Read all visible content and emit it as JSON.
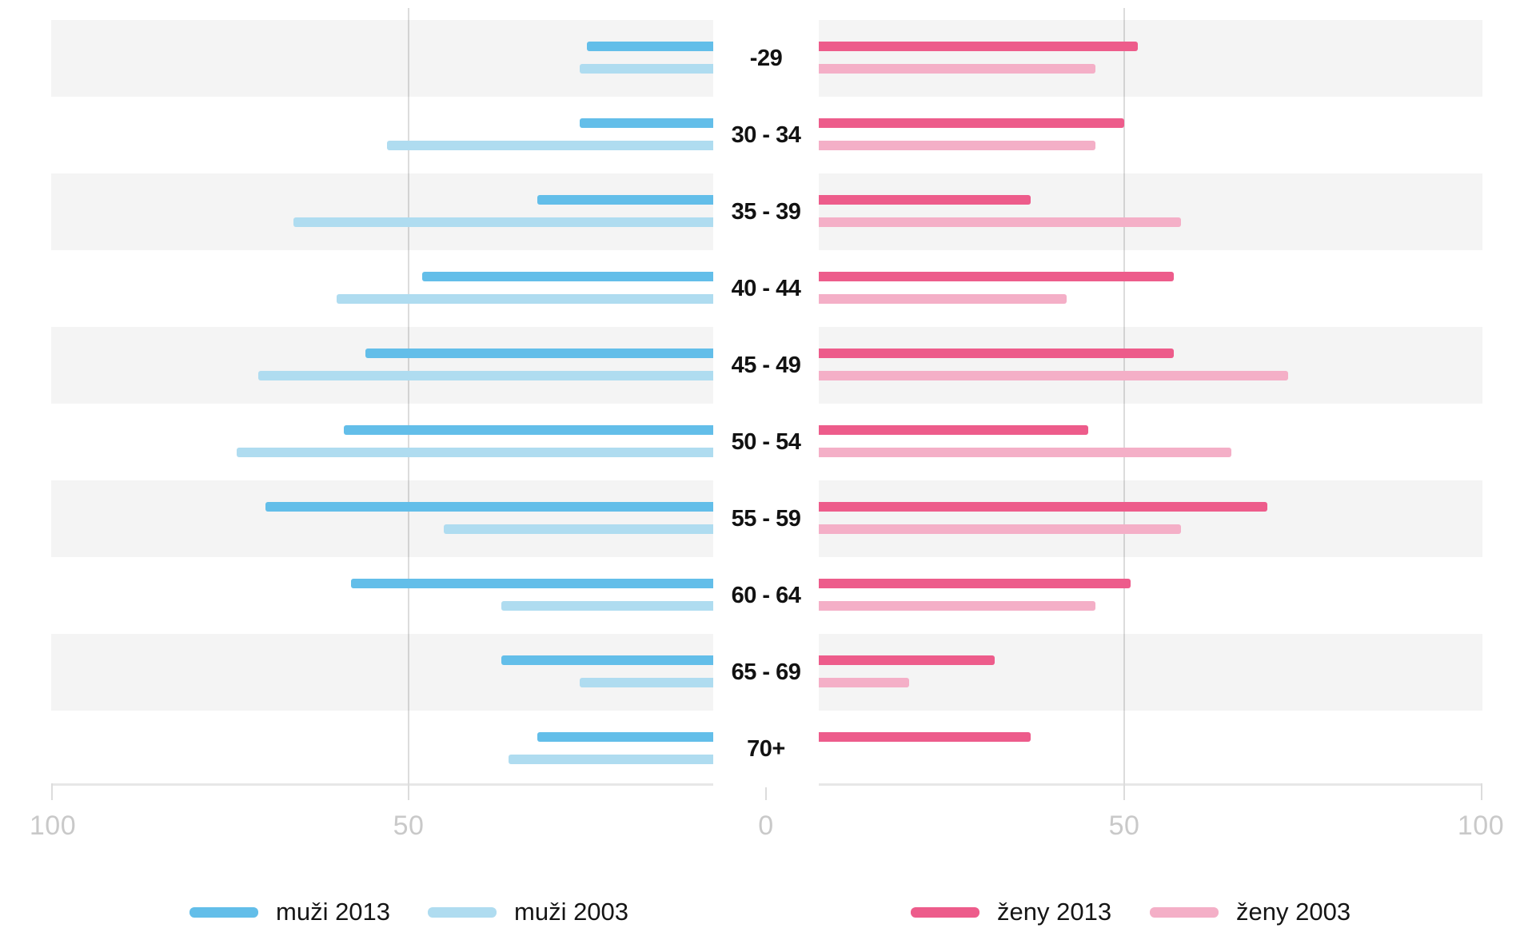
{
  "chart_data": {
    "type": "bar",
    "subtype": "population-pyramid",
    "title": "",
    "categories": [
      "-29",
      "30 - 34",
      "35 - 39",
      "40 - 44",
      "45 - 49",
      "50 - 54",
      "55 - 59",
      "60 - 64",
      "65 - 69",
      "70+"
    ],
    "series": [
      {
        "key": "muzi-2013",
        "name": "muži 2013",
        "side": "left",
        "color": "#63BEE9",
        "values": [
          25,
          26,
          32,
          48,
          56,
          59,
          70,
          58,
          37,
          32
        ]
      },
      {
        "key": "muzi-2003",
        "name": "muži 2003",
        "side": "left",
        "color": "#AFDCF0",
        "values": [
          26,
          53,
          66,
          60,
          71,
          74,
          45,
          37,
          26,
          36
        ]
      },
      {
        "key": "zeny-2013",
        "name": "ženy 2013",
        "side": "right",
        "color": "#ED5C8B",
        "values": [
          52,
          50,
          37,
          57,
          57,
          45,
          70,
          51,
          32,
          37
        ]
      },
      {
        "key": "zeny-2003",
        "name": "ženy 2003",
        "side": "right",
        "color": "#F4AFC7",
        "values": [
          46,
          46,
          58,
          42,
          73,
          65,
          58,
          46,
          20,
          null
        ]
      }
    ],
    "x_axis": {
      "tick_labels": [
        "100",
        "50",
        "0",
        "50",
        "100"
      ],
      "left_range": [
        0,
        100
      ],
      "right_range": [
        0,
        100
      ]
    },
    "grid": true,
    "legend_position": "bottom"
  },
  "axis": {
    "tick_labels": [
      "100",
      "50",
      "0",
      "50",
      "100"
    ]
  },
  "legend": {
    "items": [
      {
        "label": "muži 2013",
        "color": "#63BEE9"
      },
      {
        "label": "muži 2003",
        "color": "#AFDCF0"
      },
      {
        "label": "ženy 2013",
        "color": "#ED5C8B"
      },
      {
        "label": "ženy 2003",
        "color": "#F4AFC7"
      }
    ]
  },
  "colors": {
    "row_band": "#f4f4f4",
    "gridline": "#dcdcdc",
    "axis_line": "#e7e7e7",
    "tick_label": "#c9c9c9",
    "age_label": "#121212"
  }
}
